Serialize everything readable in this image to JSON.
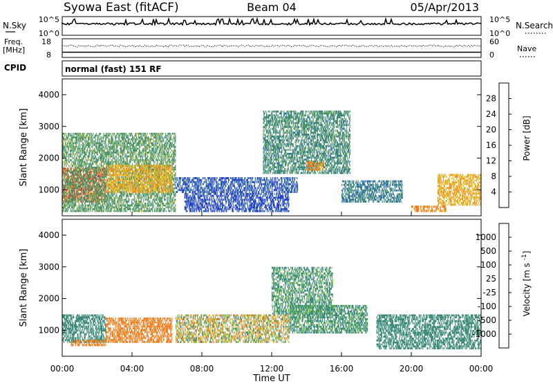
{
  "header": {
    "left_title": "Syowa East (fitACF)",
    "center_title": "Beam 04",
    "right_title": "05/Apr/2013"
  },
  "nsky_panel": {
    "left_label": "N.Sky",
    "right_label": "N.Search",
    "left_ticks": [
      "10^5",
      "10^0"
    ],
    "right_ticks": [
      "10^5",
      "10^0"
    ]
  },
  "freq_panel": {
    "left_label_line1": "Freq.",
    "left_label_line2": "[MHz]",
    "right_label": "Nave",
    "left_ticks": [
      "18",
      "8"
    ],
    "right_ticks": [
      "60",
      "0"
    ]
  },
  "cpid": {
    "label": "CPID",
    "text": "normal (fast) 151 RF"
  },
  "chart_data": [
    {
      "type": "heatmap",
      "title": "Power",
      "xlabel": "",
      "ylabel": "Slant Range [km]",
      "xlim": [
        0,
        24
      ],
      "ylim": [
        180,
        4500
      ],
      "yticks": [
        "1000",
        "2000",
        "3000",
        "4000"
      ],
      "colorbar": {
        "label": "Power [dB]",
        "ticks": [
          "4",
          "8",
          "12",
          "16",
          "20",
          "24",
          "28"
        ],
        "colors": [
          "#1f22e6",
          "#2b52c0",
          "#2e6ea6",
          "#3b8a6e",
          "#5fa05f",
          "#e0c020",
          "#f09020",
          "#f06020",
          "#e02020"
        ],
        "range": [
          0,
          30
        ]
      },
      "regions": [
        {
          "t": [
            0.0,
            2.5
          ],
          "r": [
            600,
            1700
          ],
          "level": 26
        },
        {
          "t": [
            0.0,
            6.5
          ],
          "r": [
            300,
            2800
          ],
          "level": 14
        },
        {
          "t": [
            2.5,
            6.3
          ],
          "r": [
            900,
            1800
          ],
          "level": 20
        },
        {
          "t": [
            6.5,
            13.5
          ],
          "r": [
            900,
            1400
          ],
          "level": 6
        },
        {
          "t": [
            7.0,
            13.0
          ],
          "r": [
            300,
            900
          ],
          "level": 5
        },
        {
          "t": [
            11.5,
            16.5
          ],
          "r": [
            1500,
            3500
          ],
          "level": 12
        },
        {
          "t": [
            14.0,
            15.0
          ],
          "r": [
            1600,
            1900
          ],
          "level": 22
        },
        {
          "t": [
            16.0,
            19.5
          ],
          "r": [
            600,
            1300
          ],
          "level": 10
        },
        {
          "t": [
            20.0,
            22.0
          ],
          "r": [
            300,
            500
          ],
          "level": 22
        },
        {
          "t": [
            21.5,
            24.0
          ],
          "r": [
            500,
            1500
          ],
          "level": 20
        }
      ]
    },
    {
      "type": "heatmap",
      "title": "Velocity",
      "xlabel": "Time UT",
      "ylabel": "Slant Range [km]",
      "xlim": [
        0,
        24
      ],
      "ylim": [
        180,
        4500
      ],
      "xticks": [
        "00:00",
        "04:00",
        "08:00",
        "12:00",
        "16:00",
        "20:00",
        "00:00"
      ],
      "yticks": [
        "1000",
        "2000",
        "3000",
        "4000"
      ],
      "colorbar": {
        "label": "Velocity [m s^-1]",
        "ticks": [
          "1000",
          "500",
          "100",
          "25",
          "-25",
          "-100",
          "-500",
          "-1000"
        ],
        "colors": [
          "#2040c0",
          "#2a64a0",
          "#3a8a78",
          "#6abf3a",
          "#c8c8c8",
          "#f0b020",
          "#f08020",
          "#f05020",
          "#e01010"
        ]
      },
      "regions": [
        {
          "t": [
            0.0,
            2.5
          ],
          "r": [
            600,
            1500
          ],
          "velocity": 300
        },
        {
          "t": [
            0.5,
            2.5
          ],
          "r": [
            500,
            700
          ],
          "velocity": -300
        },
        {
          "t": [
            2.5,
            6.3
          ],
          "r": [
            600,
            1400
          ],
          "velocity": -300
        },
        {
          "t": [
            6.5,
            13.0
          ],
          "r": [
            600,
            1500
          ],
          "velocity": 0
        },
        {
          "t": [
            12.0,
            15.5
          ],
          "r": [
            1500,
            3000
          ],
          "velocity": 150
        },
        {
          "t": [
            13.0,
            17.5
          ],
          "r": [
            900,
            1800
          ],
          "velocity": 200
        },
        {
          "t": [
            18.0,
            24.0
          ],
          "r": [
            400,
            1500
          ],
          "velocity": 300
        }
      ]
    }
  ]
}
